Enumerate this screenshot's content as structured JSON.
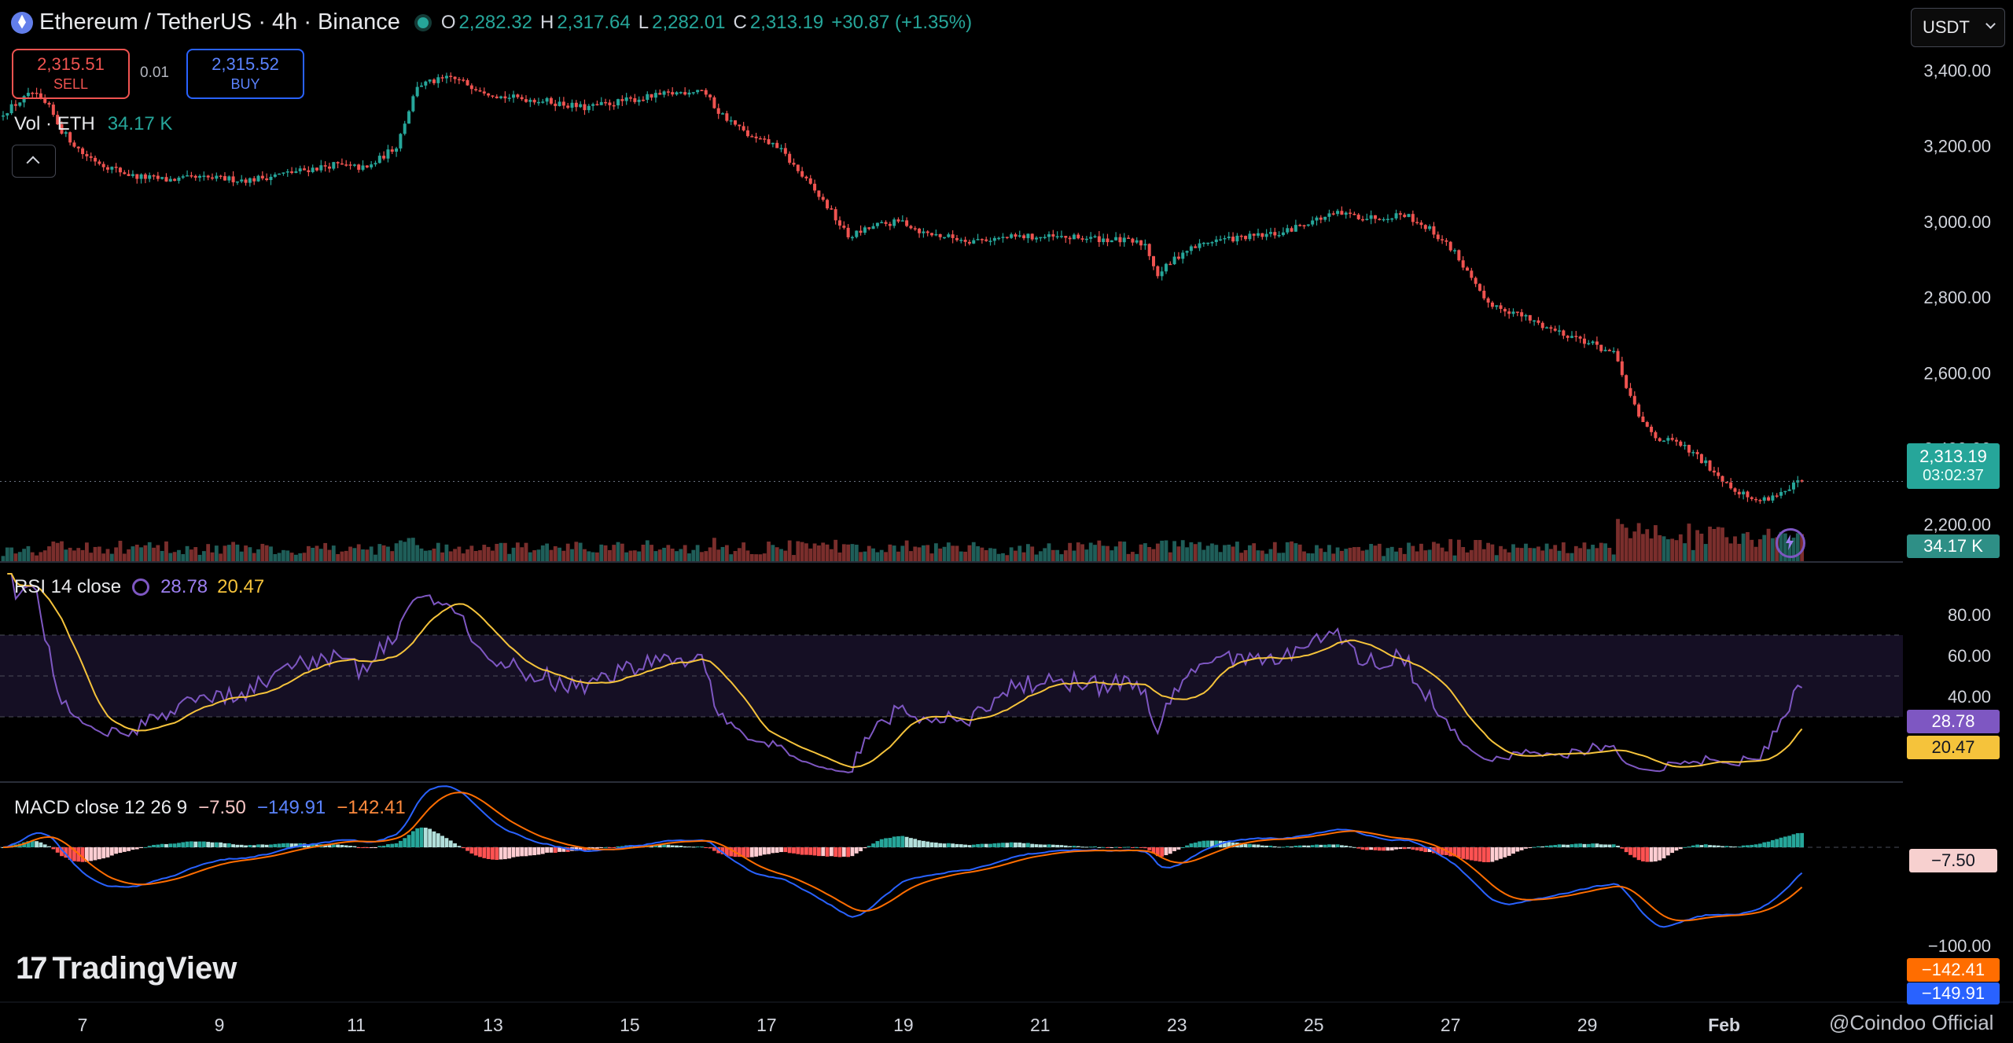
{
  "header": {
    "symbol_title": "Ethereum / TetherUS · 4h · Binance",
    "o_label": "O",
    "o_value": "2,282.32",
    "h_label": "H",
    "h_value": "2,317.64",
    "l_label": "L",
    "l_value": "2,282.01",
    "c_label": "C",
    "c_value": "2,313.19",
    "change": "+30.87 (+1.35%)"
  },
  "trade": {
    "sell_price": "2,315.51",
    "sell_label": "SELL",
    "spread": "0.01",
    "buy_price": "2,315.52",
    "buy_label": "BUY"
  },
  "volume": {
    "label": "Vol · ETH",
    "value": "34.17 K",
    "axis_tag": "34.17 K"
  },
  "currency_button": "USDT",
  "price_tag": {
    "price": "2,313.19",
    "countdown": "03:02:37"
  },
  "rsi": {
    "label": "RSI 14 close",
    "value": "28.78",
    "ma": "20.47"
  },
  "macd": {
    "label": "MACD close 12 26 9",
    "hist": "−7.50",
    "macd": "−149.91",
    "signal": "−142.41"
  },
  "branding": {
    "logo": "TradingView",
    "watermark": "@Coindoo Official"
  },
  "colors": {
    "up": "#26a69a",
    "down": "#ef5350",
    "rsi": "#7e57c2",
    "rsi_ma": "#f5c33b",
    "macd": "#2962ff",
    "signal": "#ff6d00"
  },
  "chart_data": {
    "type": "candlestick",
    "title": "Ethereum / TetherUS · 4h · Binance",
    "price_axis": {
      "ticks": [
        "3,400.00",
        "3,200.00",
        "3,000.00",
        "2,800.00",
        "2,600.00",
        "2,400.00",
        "2,200.00"
      ],
      "range": [
        2100,
        3440
      ]
    },
    "x_ticks": [
      "7",
      "9",
      "11",
      "13",
      "15",
      "17",
      "19",
      "21",
      "23",
      "25",
      "27",
      "29",
      "Feb"
    ],
    "price_path": [
      [
        0,
        3280
      ],
      [
        8,
        3340
      ],
      [
        12,
        3300
      ],
      [
        15,
        3240
      ],
      [
        20,
        3180
      ],
      [
        25,
        3150
      ],
      [
        32,
        3120
      ],
      [
        40,
        3110
      ],
      [
        48,
        3115
      ],
      [
        60,
        3110
      ],
      [
        70,
        3130
      ],
      [
        80,
        3150
      ],
      [
        88,
        3140
      ],
      [
        95,
        3200
      ],
      [
        100,
        3360
      ],
      [
        108,
        3380
      ],
      [
        115,
        3350
      ],
      [
        120,
        3330
      ],
      [
        130,
        3320
      ],
      [
        140,
        3300
      ],
      [
        150,
        3320
      ],
      [
        162,
        3340
      ],
      [
        168,
        3350
      ],
      [
        172,
        3290
      ],
      [
        180,
        3220
      ],
      [
        186,
        3200
      ],
      [
        192,
        3120
      ],
      [
        198,
        3040
      ],
      [
        203,
        2960
      ],
      [
        210,
        2990
      ],
      [
        216,
        3000
      ],
      [
        221,
        2970
      ],
      [
        232,
        2950
      ],
      [
        245,
        2960
      ],
      [
        262,
        2955
      ],
      [
        268,
        2950
      ],
      [
        274,
        2940
      ],
      [
        277,
        2860
      ],
      [
        283,
        2920
      ],
      [
        290,
        2950
      ],
      [
        300,
        2960
      ],
      [
        307,
        2970
      ],
      [
        313,
        3000
      ],
      [
        320,
        3020
      ],
      [
        328,
        3010
      ],
      [
        336,
        3020
      ],
      [
        342,
        2980
      ],
      [
        348,
        2920
      ],
      [
        355,
        2790
      ],
      [
        362,
        2760
      ],
      [
        370,
        2720
      ],
      [
        378,
        2690
      ],
      [
        386,
        2650
      ],
      [
        392,
        2480
      ],
      [
        396,
        2430
      ],
      [
        402,
        2410
      ],
      [
        408,
        2360
      ],
      [
        414,
        2300
      ],
      [
        420,
        2260
      ],
      [
        428,
        2290
      ],
      [
        430,
        2313
      ]
    ],
    "rsi": {
      "ticks": [
        "80.00",
        "60.00",
        "40.00"
      ],
      "range": [
        0,
        100
      ],
      "bands": [
        70,
        50,
        30
      ]
    },
    "macd": {
      "ticks": [
        "−100.00"
      ]
    }
  }
}
